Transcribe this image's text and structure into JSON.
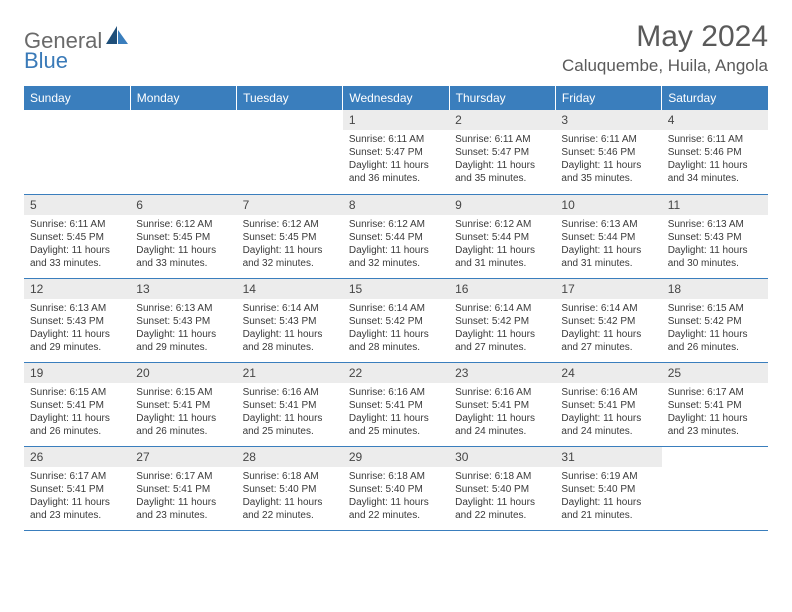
{
  "logo": {
    "part1": "General",
    "part2": "Blue"
  },
  "title": "May 2024",
  "location": "Caluquembe, Huila, Angola",
  "colors": {
    "header_bg": "#3a7ebd",
    "header_text": "#ffffff",
    "daynum_bg": "#ececec",
    "daynum_text": "#464646",
    "body_text": "#3a3a3a",
    "border": "#3a7ebd",
    "logo_gray": "#6a6a6a",
    "logo_blue": "#3a7ab8",
    "title_color": "#5a5a5a"
  },
  "typography": {
    "title_fontsize": 30,
    "location_fontsize": 17,
    "dayheader_fontsize": 12,
    "daynum_fontsize": 12,
    "cell_fontsize": 10
  },
  "day_headers": [
    "Sunday",
    "Monday",
    "Tuesday",
    "Wednesday",
    "Thursday",
    "Friday",
    "Saturday"
  ],
  "weeks": [
    [
      {
        "empty": true
      },
      {
        "empty": true
      },
      {
        "empty": true
      },
      {
        "num": "1",
        "sunrise": "Sunrise: 6:11 AM",
        "sunset": "Sunset: 5:47 PM",
        "day1": "Daylight: 11 hours",
        "day2": "and 36 minutes."
      },
      {
        "num": "2",
        "sunrise": "Sunrise: 6:11 AM",
        "sunset": "Sunset: 5:47 PM",
        "day1": "Daylight: 11 hours",
        "day2": "and 35 minutes."
      },
      {
        "num": "3",
        "sunrise": "Sunrise: 6:11 AM",
        "sunset": "Sunset: 5:46 PM",
        "day1": "Daylight: 11 hours",
        "day2": "and 35 minutes."
      },
      {
        "num": "4",
        "sunrise": "Sunrise: 6:11 AM",
        "sunset": "Sunset: 5:46 PM",
        "day1": "Daylight: 11 hours",
        "day2": "and 34 minutes."
      }
    ],
    [
      {
        "num": "5",
        "sunrise": "Sunrise: 6:11 AM",
        "sunset": "Sunset: 5:45 PM",
        "day1": "Daylight: 11 hours",
        "day2": "and 33 minutes."
      },
      {
        "num": "6",
        "sunrise": "Sunrise: 6:12 AM",
        "sunset": "Sunset: 5:45 PM",
        "day1": "Daylight: 11 hours",
        "day2": "and 33 minutes."
      },
      {
        "num": "7",
        "sunrise": "Sunrise: 6:12 AM",
        "sunset": "Sunset: 5:45 PM",
        "day1": "Daylight: 11 hours",
        "day2": "and 32 minutes."
      },
      {
        "num": "8",
        "sunrise": "Sunrise: 6:12 AM",
        "sunset": "Sunset: 5:44 PM",
        "day1": "Daylight: 11 hours",
        "day2": "and 32 minutes."
      },
      {
        "num": "9",
        "sunrise": "Sunrise: 6:12 AM",
        "sunset": "Sunset: 5:44 PM",
        "day1": "Daylight: 11 hours",
        "day2": "and 31 minutes."
      },
      {
        "num": "10",
        "sunrise": "Sunrise: 6:13 AM",
        "sunset": "Sunset: 5:44 PM",
        "day1": "Daylight: 11 hours",
        "day2": "and 31 minutes."
      },
      {
        "num": "11",
        "sunrise": "Sunrise: 6:13 AM",
        "sunset": "Sunset: 5:43 PM",
        "day1": "Daylight: 11 hours",
        "day2": "and 30 minutes."
      }
    ],
    [
      {
        "num": "12",
        "sunrise": "Sunrise: 6:13 AM",
        "sunset": "Sunset: 5:43 PM",
        "day1": "Daylight: 11 hours",
        "day2": "and 29 minutes."
      },
      {
        "num": "13",
        "sunrise": "Sunrise: 6:13 AM",
        "sunset": "Sunset: 5:43 PM",
        "day1": "Daylight: 11 hours",
        "day2": "and 29 minutes."
      },
      {
        "num": "14",
        "sunrise": "Sunrise: 6:14 AM",
        "sunset": "Sunset: 5:43 PM",
        "day1": "Daylight: 11 hours",
        "day2": "and 28 minutes."
      },
      {
        "num": "15",
        "sunrise": "Sunrise: 6:14 AM",
        "sunset": "Sunset: 5:42 PM",
        "day1": "Daylight: 11 hours",
        "day2": "and 28 minutes."
      },
      {
        "num": "16",
        "sunrise": "Sunrise: 6:14 AM",
        "sunset": "Sunset: 5:42 PM",
        "day1": "Daylight: 11 hours",
        "day2": "and 27 minutes."
      },
      {
        "num": "17",
        "sunrise": "Sunrise: 6:14 AM",
        "sunset": "Sunset: 5:42 PM",
        "day1": "Daylight: 11 hours",
        "day2": "and 27 minutes."
      },
      {
        "num": "18",
        "sunrise": "Sunrise: 6:15 AM",
        "sunset": "Sunset: 5:42 PM",
        "day1": "Daylight: 11 hours",
        "day2": "and 26 minutes."
      }
    ],
    [
      {
        "num": "19",
        "sunrise": "Sunrise: 6:15 AM",
        "sunset": "Sunset: 5:41 PM",
        "day1": "Daylight: 11 hours",
        "day2": "and 26 minutes."
      },
      {
        "num": "20",
        "sunrise": "Sunrise: 6:15 AM",
        "sunset": "Sunset: 5:41 PM",
        "day1": "Daylight: 11 hours",
        "day2": "and 26 minutes."
      },
      {
        "num": "21",
        "sunrise": "Sunrise: 6:16 AM",
        "sunset": "Sunset: 5:41 PM",
        "day1": "Daylight: 11 hours",
        "day2": "and 25 minutes."
      },
      {
        "num": "22",
        "sunrise": "Sunrise: 6:16 AM",
        "sunset": "Sunset: 5:41 PM",
        "day1": "Daylight: 11 hours",
        "day2": "and 25 minutes."
      },
      {
        "num": "23",
        "sunrise": "Sunrise: 6:16 AM",
        "sunset": "Sunset: 5:41 PM",
        "day1": "Daylight: 11 hours",
        "day2": "and 24 minutes."
      },
      {
        "num": "24",
        "sunrise": "Sunrise: 6:16 AM",
        "sunset": "Sunset: 5:41 PM",
        "day1": "Daylight: 11 hours",
        "day2": "and 24 minutes."
      },
      {
        "num": "25",
        "sunrise": "Sunrise: 6:17 AM",
        "sunset": "Sunset: 5:41 PM",
        "day1": "Daylight: 11 hours",
        "day2": "and 23 minutes."
      }
    ],
    [
      {
        "num": "26",
        "sunrise": "Sunrise: 6:17 AM",
        "sunset": "Sunset: 5:41 PM",
        "day1": "Daylight: 11 hours",
        "day2": "and 23 minutes."
      },
      {
        "num": "27",
        "sunrise": "Sunrise: 6:17 AM",
        "sunset": "Sunset: 5:41 PM",
        "day1": "Daylight: 11 hours",
        "day2": "and 23 minutes."
      },
      {
        "num": "28",
        "sunrise": "Sunrise: 6:18 AM",
        "sunset": "Sunset: 5:40 PM",
        "day1": "Daylight: 11 hours",
        "day2": "and 22 minutes."
      },
      {
        "num": "29",
        "sunrise": "Sunrise: 6:18 AM",
        "sunset": "Sunset: 5:40 PM",
        "day1": "Daylight: 11 hours",
        "day2": "and 22 minutes."
      },
      {
        "num": "30",
        "sunrise": "Sunrise: 6:18 AM",
        "sunset": "Sunset: 5:40 PM",
        "day1": "Daylight: 11 hours",
        "day2": "and 22 minutes."
      },
      {
        "num": "31",
        "sunrise": "Sunrise: 6:19 AM",
        "sunset": "Sunset: 5:40 PM",
        "day1": "Daylight: 11 hours",
        "day2": "and 21 minutes."
      },
      {
        "empty": true
      }
    ]
  ]
}
